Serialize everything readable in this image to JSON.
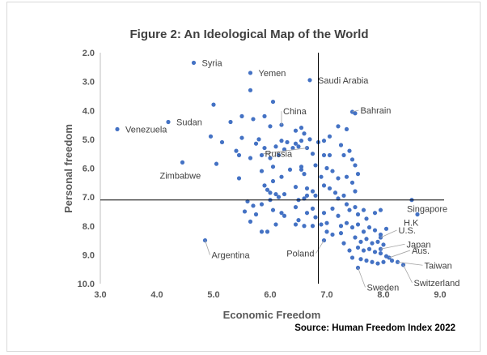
{
  "chart_data": {
    "type": "scatter",
    "title": "Figure 2: An Ideological Map of the World",
    "xlabel": "Economic Freedom",
    "ylabel": "Personal freedom",
    "xlim": [
      3.0,
      9.0
    ],
    "ylim": [
      2.0,
      10.0
    ],
    "y_reversed": true,
    "x_ticks": [
      "3.0",
      "4.0",
      "5.0",
      "6.0",
      "7.0",
      "8.0",
      "9.0"
    ],
    "y_ticks": [
      "2.0",
      "3.0",
      "4.0",
      "5.0",
      "6.0",
      "7.0",
      "8.0",
      "9.0",
      "10.0"
    ],
    "reference_lines": {
      "vertical_x": 6.85,
      "horizontal_y": 7.1
    },
    "gridlines": false,
    "source": "Source: Human Freedom Index 2022",
    "labeled_points": [
      {
        "name": "Syria",
        "x": 4.65,
        "y": 2.35
      },
      {
        "name": "Yemen",
        "x": 5.65,
        "y": 2.7
      },
      {
        "name": "Saudi Arabia",
        "x": 6.7,
        "y": 2.95
      },
      {
        "name": "Bahrain",
        "x": 7.45,
        "y": 4.05
      },
      {
        "name": "China",
        "x": 6.2,
        "y": 4.5
      },
      {
        "name": "Sudan",
        "x": 4.2,
        "y": 4.4
      },
      {
        "name": "Venezuela",
        "x": 3.3,
        "y": 4.65
      },
      {
        "name": "Russia",
        "x": 6.65,
        "y": 5.3
      },
      {
        "name": "Zimbabwe",
        "x": 4.45,
        "y": 5.8
      },
      {
        "name": "Singapore",
        "x": 8.5,
        "y": 7.1
      },
      {
        "name": "H.K",
        "x": 8.6,
        "y": 7.6
      },
      {
        "name": "U.S.",
        "x": 7.95,
        "y": 8.4
      },
      {
        "name": "Japan",
        "x": 7.95,
        "y": 8.8
      },
      {
        "name": "Aus.",
        "x": 8.1,
        "y": 9.1
      },
      {
        "name": "Taiwan",
        "x": 8.25,
        "y": 9.25
      },
      {
        "name": "Poland",
        "x": 6.95,
        "y": 8.5
      },
      {
        "name": "Argentina",
        "x": 4.85,
        "y": 8.5
      },
      {
        "name": "Switzerland",
        "x": 8.35,
        "y": 9.35
      },
      {
        "name": "Sweden",
        "x": 7.55,
        "y": 9.45
      }
    ],
    "points": [
      [
        5.65,
        3.3
      ],
      [
        5.0,
        3.8
      ],
      [
        6.05,
        3.7
      ],
      [
        5.5,
        4.2
      ],
      [
        5.7,
        4.3
      ],
      [
        5.9,
        4.2
      ],
      [
        6.0,
        4.55
      ],
      [
        6.45,
        4.7
      ],
      [
        6.55,
        4.6
      ],
      [
        6.6,
        4.8
      ],
      [
        5.3,
        4.4
      ],
      [
        7.2,
        4.55
      ],
      [
        7.5,
        4.1
      ],
      [
        7.35,
        4.65
      ],
      [
        4.95,
        4.9
      ],
      [
        5.15,
        5.1
      ],
      [
        5.5,
        4.95
      ],
      [
        5.8,
        5.0
      ],
      [
        5.75,
        5.15
      ],
      [
        5.9,
        5.3
      ],
      [
        6.2,
        5.05
      ],
      [
        6.3,
        5.1
      ],
      [
        6.45,
        5.15
      ],
      [
        6.55,
        5.05
      ],
      [
        6.7,
        5.0
      ],
      [
        6.1,
        5.25
      ],
      [
        6.25,
        5.35
      ],
      [
        6.4,
        5.3
      ],
      [
        6.5,
        5.25
      ],
      [
        6.85,
        5.1
      ],
      [
        6.95,
        5.05
      ],
      [
        7.05,
        4.9
      ],
      [
        7.25,
        5.2
      ],
      [
        7.4,
        5.4
      ],
      [
        5.4,
        5.4
      ],
      [
        5.45,
        5.55
      ],
      [
        5.05,
        5.85
      ],
      [
        5.65,
        5.65
      ],
      [
        5.85,
        5.55
      ],
      [
        6.0,
        5.65
      ],
      [
        6.15,
        5.55
      ],
      [
        6.75,
        5.5
      ],
      [
        6.95,
        5.55
      ],
      [
        7.05,
        5.55
      ],
      [
        7.3,
        5.55
      ],
      [
        7.45,
        5.7
      ],
      [
        7.5,
        5.9
      ],
      [
        6.8,
        5.9
      ],
      [
        6.55,
        5.95
      ],
      [
        6.35,
        6.05
      ],
      [
        6.05,
        5.95
      ],
      [
        5.85,
        6.1
      ],
      [
        5.45,
        6.35
      ],
      [
        6.2,
        6.3
      ],
      [
        6.05,
        6.45
      ],
      [
        6.55,
        6.05
      ],
      [
        6.6,
        6.2
      ],
      [
        7.0,
        6.0
      ],
      [
        7.1,
        6.1
      ],
      [
        7.2,
        6.35
      ],
      [
        6.9,
        6.3
      ],
      [
        7.35,
        6.3
      ],
      [
        7.45,
        6.5
      ],
      [
        7.55,
        6.2
      ],
      [
        5.9,
        6.6
      ],
      [
        5.95,
        6.75
      ],
      [
        6.0,
        6.85
      ],
      [
        6.1,
        6.9
      ],
      [
        6.25,
        6.9
      ],
      [
        6.45,
        6.65
      ],
      [
        6.65,
        6.7
      ],
      [
        6.75,
        6.8
      ],
      [
        6.8,
        6.95
      ],
      [
        6.65,
        6.95
      ],
      [
        6.6,
        7.05
      ],
      [
        6.5,
        7.1
      ],
      [
        6.95,
        6.6
      ],
      [
        7.05,
        6.7
      ],
      [
        7.15,
        6.85
      ],
      [
        7.2,
        7.05
      ],
      [
        7.5,
        6.8
      ],
      [
        7.3,
        6.95
      ],
      [
        5.6,
        7.15
      ],
      [
        5.7,
        7.3
      ],
      [
        5.85,
        7.25
      ],
      [
        6.0,
        7.1
      ],
      [
        6.15,
        7.0
      ],
      [
        5.55,
        7.5
      ],
      [
        5.75,
        7.6
      ],
      [
        5.65,
        7.85
      ],
      [
        6.05,
        7.45
      ],
      [
        6.2,
        7.55
      ],
      [
        6.25,
        7.65
      ],
      [
        6.45,
        7.35
      ],
      [
        6.5,
        7.8
      ],
      [
        6.65,
        7.55
      ],
      [
        6.75,
        7.4
      ],
      [
        6.8,
        7.7
      ],
      [
        6.95,
        7.55
      ],
      [
        7.1,
        7.4
      ],
      [
        7.2,
        7.65
      ],
      [
        7.35,
        7.25
      ],
      [
        7.4,
        7.45
      ],
      [
        7.5,
        7.35
      ],
      [
        7.55,
        7.6
      ],
      [
        7.65,
        7.45
      ],
      [
        7.7,
        7.75
      ],
      [
        7.85,
        7.55
      ],
      [
        7.95,
        7.45
      ],
      [
        6.45,
        7.95
      ],
      [
        6.6,
        8.0
      ],
      [
        6.75,
        8.0
      ],
      [
        6.9,
        7.95
      ],
      [
        7.0,
        8.2
      ],
      [
        7.1,
        8.3
      ],
      [
        7.25,
        8.0
      ],
      [
        7.35,
        7.9
      ],
      [
        7.45,
        8.05
      ],
      [
        7.55,
        7.95
      ],
      [
        7.65,
        8.2
      ],
      [
        7.75,
        8.05
      ],
      [
        7.85,
        8.15
      ],
      [
        7.95,
        8.3
      ],
      [
        8.05,
        8.1
      ],
      [
        7.5,
        8.4
      ],
      [
        7.6,
        8.55
      ],
      [
        7.7,
        8.45
      ],
      [
        7.8,
        8.6
      ],
      [
        7.9,
        8.55
      ],
      [
        8.0,
        8.65
      ],
      [
        7.55,
        8.75
      ],
      [
        7.65,
        8.85
      ],
      [
        7.75,
        8.8
      ],
      [
        7.85,
        8.9
      ],
      [
        7.95,
        8.95
      ],
      [
        8.05,
        9.05
      ],
      [
        7.45,
        9.1
      ],
      [
        7.6,
        9.15
      ],
      [
        7.7,
        9.2
      ],
      [
        7.8,
        9.25
      ],
      [
        7.9,
        9.3
      ],
      [
        8.0,
        9.25
      ],
      [
        8.15,
        9.2
      ],
      [
        5.85,
        8.2
      ],
      [
        5.95,
        8.2
      ],
      [
        6.1,
        7.95
      ],
      [
        7.0,
        7.9
      ],
      [
        7.3,
        8.6
      ],
      [
        7.4,
        8.85
      ],
      [
        7.25,
        8.25
      ]
    ]
  }
}
